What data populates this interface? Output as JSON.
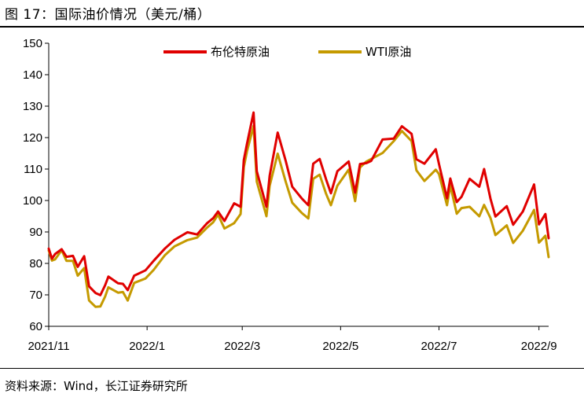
{
  "page": {
    "title": "图 17：国际油价情况（美元/桶）",
    "source": "资料来源：Wind，长江证券研究所"
  },
  "chart_data": {
    "type": "line",
    "title": "图 17：国际油价情况（美元/桶）",
    "xlabel": "",
    "ylabel": "",
    "ylim": [
      60,
      150
    ],
    "yticks": [
      60,
      70,
      80,
      90,
      100,
      110,
      120,
      130,
      140,
      150
    ],
    "xlim": [
      "2021-11-01",
      "2022-09-07"
    ],
    "xticks": [
      {
        "date": "2021-11-01",
        "label": "2021/11"
      },
      {
        "date": "2022-01-01",
        "label": "2022/1"
      },
      {
        "date": "2022-03-01",
        "label": "2022/3"
      },
      {
        "date": "2022-05-01",
        "label": "2022/5"
      },
      {
        "date": "2022-07-01",
        "label": "2022/7"
      },
      {
        "date": "2022-09-01",
        "label": "2022/9"
      }
    ],
    "grid": false,
    "legend_position": "top-center",
    "series": [
      {
        "name": "布伦特原油",
        "color": "#e00000",
        "points": [
          [
            "2021-11-01",
            84.7
          ],
          [
            "2021-11-03",
            81.5
          ],
          [
            "2021-11-05",
            83.0
          ],
          [
            "2021-11-09",
            84.5
          ],
          [
            "2021-11-12",
            82.1
          ],
          [
            "2021-11-16",
            82.4
          ],
          [
            "2021-11-19",
            78.9
          ],
          [
            "2021-11-23",
            82.3
          ],
          [
            "2021-11-26",
            72.7
          ],
          [
            "2021-11-30",
            70.6
          ],
          [
            "2021-12-03",
            69.9
          ],
          [
            "2021-12-06",
            73.1
          ],
          [
            "2021-12-08",
            75.8
          ],
          [
            "2021-12-14",
            73.7
          ],
          [
            "2021-12-17",
            73.5
          ],
          [
            "2021-12-20",
            71.5
          ],
          [
            "2021-12-24",
            76.1
          ],
          [
            "2021-12-31",
            77.8
          ],
          [
            "2022-01-05",
            80.8
          ],
          [
            "2022-01-12",
            84.7
          ],
          [
            "2022-01-18",
            87.5
          ],
          [
            "2022-01-26",
            89.9
          ],
          [
            "2022-02-01",
            89.2
          ],
          [
            "2022-02-07",
            92.7
          ],
          [
            "2022-02-11",
            94.4
          ],
          [
            "2022-02-14",
            96.5
          ],
          [
            "2022-02-18",
            93.5
          ],
          [
            "2022-02-24",
            99.1
          ],
          [
            "2022-02-28",
            98.0
          ],
          [
            "2022-03-02",
            112.9
          ],
          [
            "2022-03-04",
            118.1
          ],
          [
            "2022-03-08",
            127.98
          ],
          [
            "2022-03-10",
            109.3
          ],
          [
            "2022-03-16",
            98.0
          ],
          [
            "2022-03-18",
            107.9
          ],
          [
            "2022-03-23",
            121.6
          ],
          [
            "2022-03-28",
            112.5
          ],
          [
            "2022-04-01",
            104.4
          ],
          [
            "2022-04-07",
            100.6
          ],
          [
            "2022-04-11",
            98.5
          ],
          [
            "2022-04-14",
            111.7
          ],
          [
            "2022-04-18",
            113.2
          ],
          [
            "2022-04-22",
            106.7
          ],
          [
            "2022-04-25",
            102.3
          ],
          [
            "2022-04-29",
            109.3
          ],
          [
            "2022-05-06",
            112.4
          ],
          [
            "2022-05-10",
            102.5
          ],
          [
            "2022-05-13",
            111.6
          ],
          [
            "2022-05-17",
            111.9
          ],
          [
            "2022-05-20",
            112.6
          ],
          [
            "2022-05-27",
            119.4
          ],
          [
            "2022-06-03",
            119.7
          ],
          [
            "2022-06-08",
            123.6
          ],
          [
            "2022-06-14",
            121.2
          ],
          [
            "2022-06-17",
            113.1
          ],
          [
            "2022-06-22",
            111.7
          ],
          [
            "2022-06-29",
            116.3
          ],
          [
            "2022-07-01",
            111.6
          ],
          [
            "2022-07-06",
            100.7
          ],
          [
            "2022-07-08",
            107.0
          ],
          [
            "2022-07-12",
            99.5
          ],
          [
            "2022-07-15",
            101.2
          ],
          [
            "2022-07-20",
            106.9
          ],
          [
            "2022-07-26",
            104.4
          ],
          [
            "2022-07-29",
            110.0
          ],
          [
            "2022-08-02",
            100.5
          ],
          [
            "2022-08-05",
            94.9
          ],
          [
            "2022-08-12",
            98.2
          ],
          [
            "2022-08-16",
            92.3
          ],
          [
            "2022-08-22",
            96.5
          ],
          [
            "2022-08-29",
            105.1
          ],
          [
            "2022-09-01",
            92.4
          ],
          [
            "2022-09-05",
            95.7
          ],
          [
            "2022-09-07",
            88.0
          ]
        ]
      },
      {
        "name": "WTI原油",
        "color": "#c59a00",
        "points": [
          [
            "2021-11-01",
            84.1
          ],
          [
            "2021-11-03",
            80.9
          ],
          [
            "2021-11-05",
            81.3
          ],
          [
            "2021-11-09",
            84.2
          ],
          [
            "2021-11-12",
            80.8
          ],
          [
            "2021-11-16",
            80.8
          ],
          [
            "2021-11-19",
            76.1
          ],
          [
            "2021-11-23",
            78.5
          ],
          [
            "2021-11-26",
            68.2
          ],
          [
            "2021-11-30",
            66.2
          ],
          [
            "2021-12-03",
            66.3
          ],
          [
            "2021-12-06",
            69.5
          ],
          [
            "2021-12-08",
            72.4
          ],
          [
            "2021-12-14",
            70.7
          ],
          [
            "2021-12-17",
            70.9
          ],
          [
            "2021-12-20",
            68.2
          ],
          [
            "2021-12-24",
            73.8
          ],
          [
            "2021-12-31",
            75.2
          ],
          [
            "2022-01-05",
            77.9
          ],
          [
            "2022-01-12",
            82.6
          ],
          [
            "2022-01-18",
            85.4
          ],
          [
            "2022-01-26",
            87.4
          ],
          [
            "2022-02-01",
            88.2
          ],
          [
            "2022-02-07",
            91.3
          ],
          [
            "2022-02-11",
            93.1
          ],
          [
            "2022-02-14",
            95.5
          ],
          [
            "2022-02-18",
            91.1
          ],
          [
            "2022-02-24",
            92.8
          ],
          [
            "2022-02-28",
            95.7
          ],
          [
            "2022-03-02",
            110.6
          ],
          [
            "2022-03-04",
            115.7
          ],
          [
            "2022-03-08",
            123.7
          ],
          [
            "2022-03-10",
            106.0
          ],
          [
            "2022-03-16",
            95.0
          ],
          [
            "2022-03-18",
            104.7
          ],
          [
            "2022-03-23",
            114.9
          ],
          [
            "2022-03-28",
            105.9
          ],
          [
            "2022-04-01",
            99.3
          ],
          [
            "2022-04-07",
            96.0
          ],
          [
            "2022-04-11",
            94.3
          ],
          [
            "2022-04-14",
            106.9
          ],
          [
            "2022-04-18",
            108.2
          ],
          [
            "2022-04-22",
            102.1
          ],
          [
            "2022-04-25",
            98.5
          ],
          [
            "2022-04-29",
            104.7
          ],
          [
            "2022-05-06",
            109.8
          ],
          [
            "2022-05-10",
            99.8
          ],
          [
            "2022-05-13",
            110.5
          ],
          [
            "2022-05-17",
            112.4
          ],
          [
            "2022-05-20",
            113.2
          ],
          [
            "2022-05-27",
            115.1
          ],
          [
            "2022-06-03",
            118.9
          ],
          [
            "2022-06-08",
            122.1
          ],
          [
            "2022-06-14",
            118.9
          ],
          [
            "2022-06-17",
            109.6
          ],
          [
            "2022-06-22",
            106.2
          ],
          [
            "2022-06-29",
            109.8
          ],
          [
            "2022-07-01",
            108.4
          ],
          [
            "2022-07-06",
            98.5
          ],
          [
            "2022-07-08",
            104.8
          ],
          [
            "2022-07-12",
            95.8
          ],
          [
            "2022-07-15",
            97.6
          ],
          [
            "2022-07-20",
            98.0
          ],
          [
            "2022-07-26",
            94.98
          ],
          [
            "2022-07-29",
            98.6
          ],
          [
            "2022-08-02",
            94.4
          ],
          [
            "2022-08-05",
            89.0
          ],
          [
            "2022-08-12",
            92.1
          ],
          [
            "2022-08-16",
            86.5
          ],
          [
            "2022-08-22",
            90.4
          ],
          [
            "2022-08-29",
            97.0
          ],
          [
            "2022-09-01",
            86.6
          ],
          [
            "2022-09-05",
            88.8
          ],
          [
            "2022-09-07",
            82.0
          ]
        ]
      }
    ]
  }
}
